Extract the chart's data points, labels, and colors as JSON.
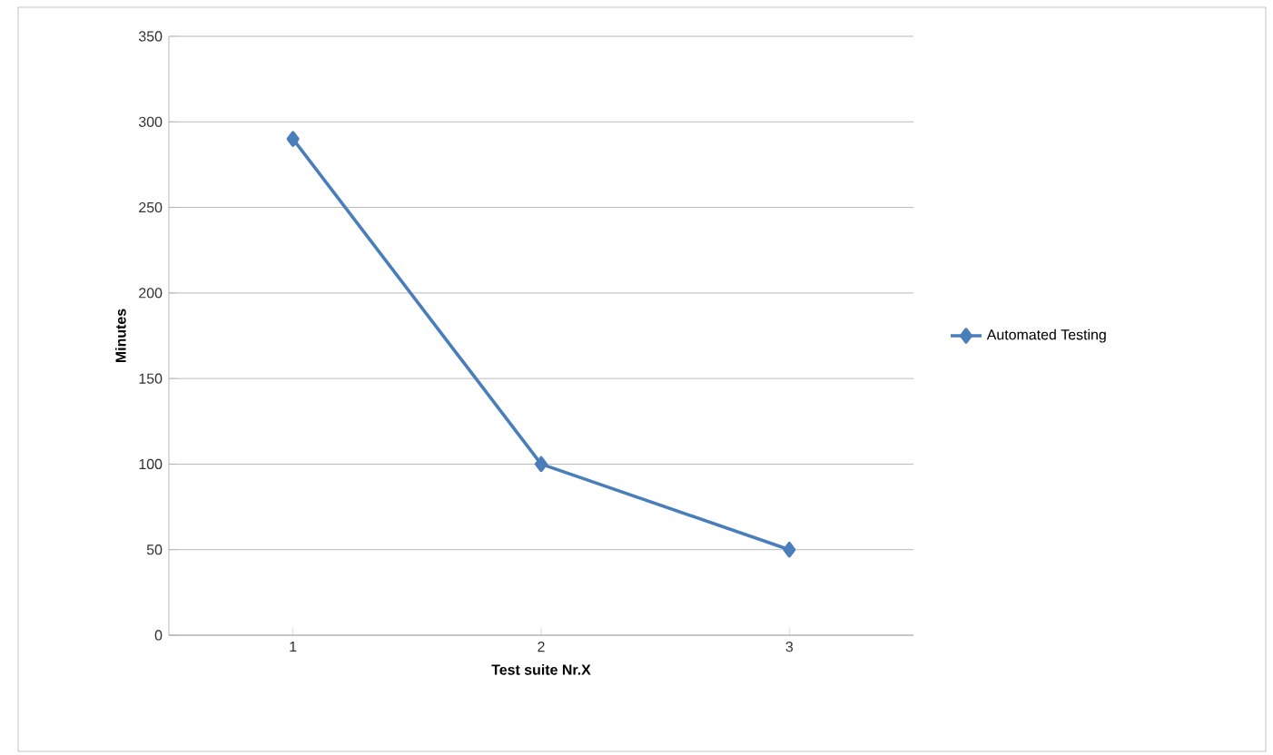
{
  "chart_data": {
    "type": "line",
    "xlabel": "Test suite Nr.X",
    "ylabel": "Minutes",
    "categories": [
      "1",
      "2",
      "3"
    ],
    "series": [
      {
        "name": "Automated Testing",
        "color": "#4a7ebb",
        "values": [
          290,
          100,
          50
        ]
      }
    ],
    "ylim": [
      0,
      350
    ],
    "yticks": [
      0,
      50,
      100,
      150,
      200,
      250,
      300,
      350
    ],
    "grid": "y",
    "legend": "right",
    "marker": "diamond",
    "line_style": "solid"
  }
}
